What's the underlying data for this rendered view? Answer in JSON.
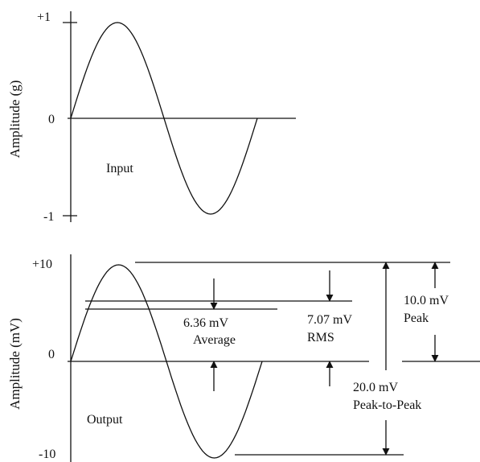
{
  "input_panel": {
    "y_axis_label": "Amplitude (g)",
    "tick_top": "+1",
    "tick_zero": "0",
    "tick_bottom": "-1",
    "signal_label": "Input"
  },
  "output_panel": {
    "y_axis_label": "Amplitude (mV)",
    "tick_top": "+10",
    "tick_zero": "0",
    "tick_bottom": "-10",
    "signal_label": "Output",
    "annotations": {
      "average_value": "6.36 mV",
      "average_label": "Average",
      "rms_value": "7.07 mV",
      "rms_label": "RMS",
      "peak_value": "10.0 mV",
      "peak_label": "Peak",
      "ptp_value": "20.0 mV",
      "ptp_label": "Peak-to-Peak"
    }
  },
  "colors": {
    "line": "#111111",
    "background": "#ffffff"
  }
}
